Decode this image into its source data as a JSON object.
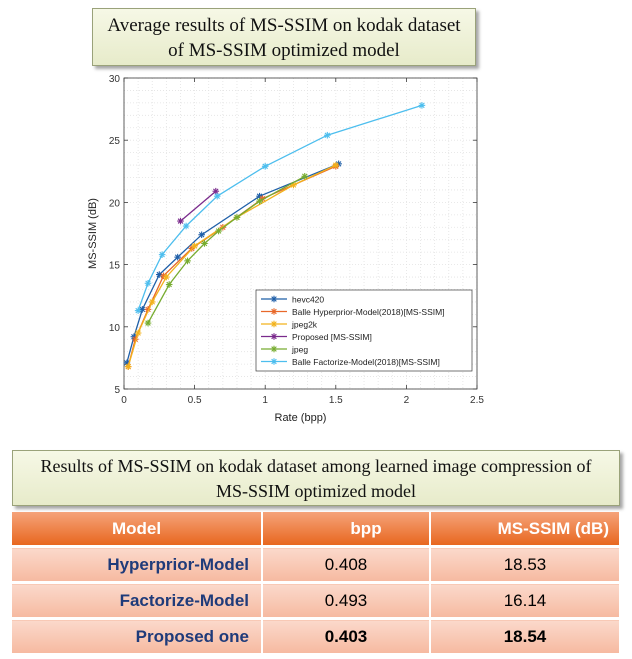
{
  "title_box": {
    "line1": "Average results of MS-SSIM on kodak dataset",
    "line2": "of MS-SSIM optimized model"
  },
  "chart_data": {
    "type": "line",
    "xlabel": "Rate (bpp)",
    "ylabel": "MS-SSIM (dB)",
    "xlim": [
      0,
      2.5
    ],
    "ylim": [
      5,
      30
    ],
    "xticks": [
      "0",
      "0.5",
      "1",
      "1.5",
      "2",
      "2.5"
    ],
    "yticks": [
      "5",
      "10",
      "15",
      "20",
      "25",
      "30"
    ],
    "grid": true,
    "legend_position": "bottom-right",
    "series": [
      {
        "name": "hevc420",
        "color": "#1f5fa8",
        "marker": "asterisk",
        "x": [
          0.02,
          0.07,
          0.13,
          0.25,
          0.38,
          0.55,
          0.96,
          1.52
        ],
        "y": [
          7.1,
          9.2,
          11.4,
          14.2,
          15.6,
          17.4,
          20.5,
          23.1
        ]
      },
      {
        "name": "Balle Hyperprior-Model(2018)[MS-SSIM]",
        "color": "#e8682a",
        "marker": "asterisk",
        "x": [
          0.03,
          0.08,
          0.17,
          0.28,
          0.48,
          0.7,
          0.98,
          1.5
        ],
        "y": [
          6.8,
          9.0,
          11.4,
          14.1,
          16.3,
          18.0,
          20.3,
          22.9
        ]
      },
      {
        "name": "jpeg2k",
        "color": "#f2b21c",
        "marker": "asterisk",
        "x": [
          0.03,
          0.1,
          0.2,
          0.3,
          0.5,
          0.8,
          1.2,
          1.5
        ],
        "y": [
          6.8,
          9.5,
          12.0,
          14.0,
          16.5,
          18.8,
          21.4,
          23.0
        ]
      },
      {
        "name": "Proposed [MS-SSIM]",
        "color": "#7a2a8c",
        "marker": "asterisk",
        "x": [
          0.4,
          0.65
        ],
        "y": [
          18.5,
          20.9
        ]
      },
      {
        "name": "jpeg",
        "color": "#77ac30",
        "marker": "asterisk",
        "x": [
          0.17,
          0.32,
          0.45,
          0.57,
          0.67,
          0.8,
          0.96,
          1.28
        ],
        "y": [
          10.3,
          13.4,
          15.3,
          16.7,
          17.7,
          18.8,
          20.1,
          22.1
        ]
      },
      {
        "name": "Balle Factorize-Model(2018)[MS-SSIM]",
        "color": "#4dbeee",
        "marker": "asterisk",
        "x": [
          0.1,
          0.17,
          0.27,
          0.44,
          0.66,
          1.0,
          1.44,
          2.11
        ],
        "y": [
          11.3,
          13.5,
          15.8,
          18.1,
          20.5,
          22.9,
          25.4,
          27.8
        ]
      }
    ]
  },
  "table_title": {
    "line1": "Results of MS-SSIM on kodak dataset among learned image compression of",
    "line2": "MS-SSIM optimized model"
  },
  "table": {
    "headers": [
      "Model",
      "bpp",
      "MS-SSIM (dB)"
    ],
    "rows": [
      {
        "model": "Hyperprior-Model",
        "bpp": "0.408",
        "msssim": "18.53"
      },
      {
        "model": "Factorize-Model",
        "bpp": "0.493",
        "msssim": "16.14"
      },
      {
        "model": "Proposed one",
        "bpp": "0.403",
        "msssim": "18.54"
      }
    ]
  }
}
